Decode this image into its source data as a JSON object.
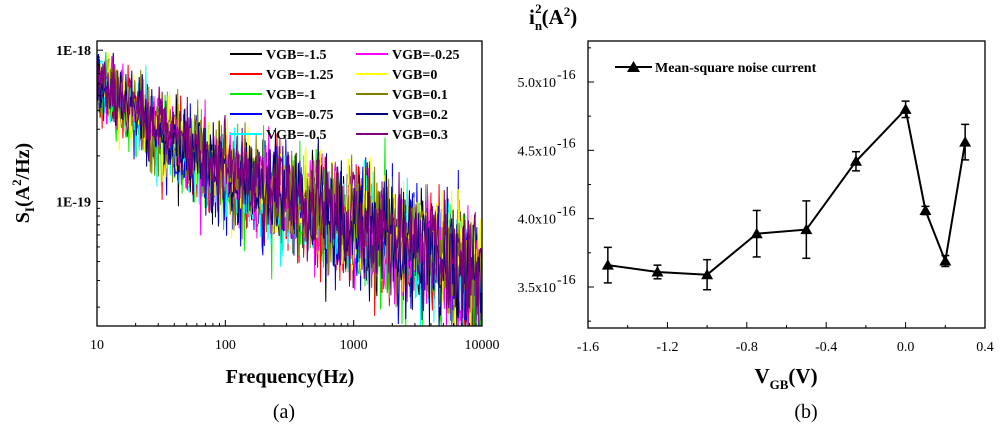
{
  "chart_data": [
    {
      "type": "line",
      "panel": "(a)",
      "xscale": "log",
      "yscale": "log",
      "xlabel": "Frequency(Hz)",
      "ylabel": "S_I(A^2/Hz)",
      "ylabel_parts": {
        "main": "S",
        "sub": "I",
        "open": "(A",
        "sup": "2",
        "close": "/Hz)"
      },
      "xlim": [
        10,
        10000
      ],
      "ylim": [
        1.5e-20,
        1.15e-18
      ],
      "x_ticks": [
        "10",
        "100",
        "1000",
        "10000"
      ],
      "x_tick_values": [
        10,
        100,
        1000,
        10000
      ],
      "y_ticks": [
        "1E-18",
        "1E-19"
      ],
      "y_tick_values": [
        1e-18,
        1e-19
      ],
      "legend_position": "top-right",
      "series": [
        {
          "name": "VGB=-1.5",
          "color": "#000000",
          "anchors": [
            [
              10,
              6.2e-19
            ],
            [
              30,
              2.8e-19
            ],
            [
              100,
              1.55e-19
            ],
            [
              300,
              1.05e-19
            ],
            [
              1000,
              7e-20
            ],
            [
              3000,
              5e-20
            ],
            [
              10000,
              3e-20
            ]
          ],
          "seed": 1
        },
        {
          "name": "VGB=-1.25",
          "color": "#ff0000",
          "anchors": [
            [
              10,
              6e-19
            ],
            [
              30,
              2.7e-19
            ],
            [
              100,
              1.5e-19
            ],
            [
              300,
              1e-19
            ],
            [
              1000,
              6.8e-20
            ],
            [
              3000,
              4.8e-20
            ],
            [
              10000,
              2.9e-20
            ]
          ],
          "seed": 2
        },
        {
          "name": "VGB=-1",
          "color": "#00ee00",
          "anchors": [
            [
              10,
              5.8e-19
            ],
            [
              30,
              2.6e-19
            ],
            [
              100,
              1.45e-19
            ],
            [
              300,
              9.8e-20
            ],
            [
              1000,
              6.6e-20
            ],
            [
              3000,
              4.6e-20
            ],
            [
              10000,
              2.8e-20
            ]
          ],
          "seed": 3
        },
        {
          "name": "VGB=-0.75",
          "color": "#0000ff",
          "anchors": [
            [
              10,
              6.3e-19
            ],
            [
              30,
              2.8e-19
            ],
            [
              100,
              1.55e-19
            ],
            [
              300,
              1.05e-19
            ],
            [
              1000,
              7.1e-20
            ],
            [
              3000,
              5e-20
            ],
            [
              10000,
              3e-20
            ]
          ],
          "seed": 4
        },
        {
          "name": "VGB=-0.5",
          "color": "#00ffff",
          "anchors": [
            [
              10,
              5.9e-19
            ],
            [
              30,
              2.65e-19
            ],
            [
              100,
              1.48e-19
            ],
            [
              300,
              1e-19
            ],
            [
              1000,
              6.7e-20
            ],
            [
              3000,
              4.7e-20
            ],
            [
              10000,
              2.8e-20
            ]
          ],
          "seed": 5
        },
        {
          "name": "VGB=-0.25",
          "color": "#ff00ff",
          "anchors": [
            [
              10,
              6.6e-19
            ],
            [
              30,
              3e-19
            ],
            [
              100,
              1.7e-19
            ],
            [
              300,
              1.15e-19
            ],
            [
              1000,
              7.8e-20
            ],
            [
              3000,
              5.4e-20
            ],
            [
              10000,
              3.2e-20
            ]
          ],
          "seed": 6
        },
        {
          "name": "VGB=0",
          "color": "#ffff00",
          "anchors": [
            [
              10,
              6.8e-19
            ],
            [
              30,
              3.1e-19
            ],
            [
              100,
              1.75e-19
            ],
            [
              300,
              1.2e-19
            ],
            [
              1000,
              8.2e-20
            ],
            [
              3000,
              5.7e-20
            ],
            [
              10000,
              3.4e-20
            ]
          ],
          "seed": 7
        },
        {
          "name": "VGB=0.1",
          "color": "#808000",
          "anchors": [
            [
              10,
              6.2e-19
            ],
            [
              30,
              2.85e-19
            ],
            [
              100,
              1.6e-19
            ],
            [
              300,
              1.08e-19
            ],
            [
              1000,
              7.3e-20
            ],
            [
              3000,
              5.1e-20
            ],
            [
              10000,
              3e-20
            ]
          ],
          "seed": 8
        },
        {
          "name": "VGB=0.2",
          "color": "#000080",
          "anchors": [
            [
              10,
              6.1e-19
            ],
            [
              30,
              2.8e-19
            ],
            [
              100,
              1.55e-19
            ],
            [
              300,
              1.05e-19
            ],
            [
              1000,
              7e-20
            ],
            [
              3000,
              4.9e-20
            ],
            [
              10000,
              2.9e-20
            ]
          ],
          "seed": 9
        },
        {
          "name": "VGB=0.3",
          "color": "#800080",
          "anchors": [
            [
              10,
              6.5e-19
            ],
            [
              30,
              3e-19
            ],
            [
              100,
              1.68e-19
            ],
            [
              300,
              1.14e-19
            ],
            [
              1000,
              7.7e-20
            ],
            [
              3000,
              5.4e-20
            ],
            [
              10000,
              3.2e-20
            ]
          ],
          "seed": 10
        }
      ]
    },
    {
      "type": "line",
      "panel": "(b)",
      "title_parts": {
        "main": "i",
        "sub": "n",
        "sup": "2",
        "open": "(A",
        "sup2": "2",
        "close": ")"
      },
      "xlabel_parts": {
        "main": "V",
        "sub": "GB",
        "rest": "(V)"
      },
      "xlim": [
        -1.6,
        0.4
      ],
      "ylim": [
        3.2e-16,
        5.3e-16
      ],
      "x_ticks": [
        "-1.6",
        "-1.2",
        "-0.8",
        "-0.4",
        "0.0",
        "0.4"
      ],
      "x_tick_values": [
        -1.6,
        -1.2,
        -0.8,
        -0.4,
        0.0,
        0.4
      ],
      "y_ticks": [
        {
          "mant": "3.5x10",
          "exp": "-16"
        },
        {
          "mant": "4.0x10",
          "exp": "-16"
        },
        {
          "mant": "4.5x10",
          "exp": "-16"
        },
        {
          "mant": "5.0x10",
          "exp": "-16"
        }
      ],
      "y_tick_values": [
        3.5e-16,
        4e-16,
        4.5e-16,
        5e-16
      ],
      "legend_position": "top-left",
      "series": [
        {
          "name": "Mean-square noise current",
          "color": "#000000",
          "marker": "triangle",
          "x": [
            -1.5,
            -1.25,
            -1.0,
            -0.75,
            -0.5,
            -0.25,
            0.0,
            0.1,
            0.2,
            0.3
          ],
          "y": [
            3.66e-16,
            3.61e-16,
            3.59e-16,
            3.89e-16,
            3.92e-16,
            4.42e-16,
            4.8e-16,
            4.06e-16,
            3.69e-16,
            4.56e-16
          ],
          "err": [
            1.3e-17,
            5e-18,
            1.1e-17,
            1.7e-17,
            2.1e-17,
            7e-18,
            6e-18,
            3e-18,
            4e-18,
            1.3e-17
          ]
        }
      ]
    }
  ],
  "captions": {
    "a": "(a)",
    "b": "(b)"
  }
}
